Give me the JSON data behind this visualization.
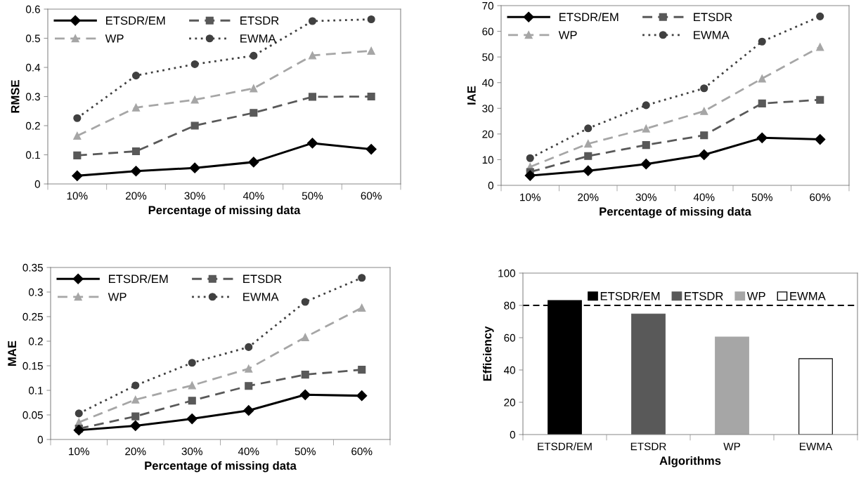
{
  "chart_data": [
    {
      "type": "line",
      "xlabel": "Percentage of missing data",
      "ylabel": "RMSE",
      "categories": [
        "10%",
        "20%",
        "30%",
        "40%",
        "50%",
        "60%"
      ],
      "ylim": [
        0,
        0.6
      ],
      "yticks": [
        0,
        0.1,
        0.2,
        0.3,
        0.4,
        0.5,
        0.6
      ],
      "grid": false,
      "legend": "top left",
      "series": [
        {
          "name": "ETSDR/EM",
          "color": "#000000",
          "marker": "diamond",
          "line_style": "solid",
          "values": [
            0.028,
            0.044,
            0.055,
            0.075,
            0.14,
            0.119
          ]
        },
        {
          "name": "ETSDR",
          "color": "#595959",
          "marker": "square",
          "line_style": "dashed",
          "values": [
            0.098,
            0.112,
            0.2,
            0.244,
            0.299,
            0.3
          ]
        },
        {
          "name": "WP",
          "color": "#a6a6a6",
          "marker": "triangle",
          "line_style": "dashed",
          "values": [
            0.165,
            0.262,
            0.289,
            0.328,
            0.441,
            0.457
          ]
        },
        {
          "name": "EWMA",
          "color": "#404040",
          "marker": "circle",
          "line_style": "dotted",
          "values": [
            0.226,
            0.372,
            0.411,
            0.44,
            0.559,
            0.565
          ]
        }
      ]
    },
    {
      "type": "line",
      "xlabel": "Percentage of missing data",
      "ylabel": "IAE",
      "categories": [
        "10%",
        "20%",
        "30%",
        "40%",
        "50%",
        "60%"
      ],
      "ylim": [
        0,
        70
      ],
      "yticks": [
        0,
        10,
        20,
        30,
        40,
        50,
        60,
        70
      ],
      "grid": false,
      "legend": "top left",
      "series": [
        {
          "name": "ETSDR/EM",
          "color": "#000000",
          "marker": "diamond",
          "line_style": "solid",
          "values": [
            3.8,
            5.7,
            8.3,
            11.9,
            18.5,
            17.9
          ]
        },
        {
          "name": "ETSDR",
          "color": "#595959",
          "marker": "square",
          "line_style": "dashed",
          "values": [
            5.2,
            11.4,
            15.7,
            19.5,
            31.9,
            33.3
          ]
        },
        {
          "name": "WP",
          "color": "#a6a6a6",
          "marker": "triangle",
          "line_style": "dashed",
          "values": [
            7.2,
            16.2,
            22.1,
            28.9,
            41.6,
            53.9
          ]
        },
        {
          "name": "EWMA",
          "color": "#404040",
          "marker": "circle",
          "line_style": "dotted",
          "values": [
            10.6,
            22.2,
            31.2,
            37.8,
            56,
            65.8
          ]
        }
      ]
    },
    {
      "type": "line",
      "xlabel": "Percentage of missing data",
      "ylabel": "MAE",
      "categories": [
        "10%",
        "20%",
        "30%",
        "40%",
        "50%",
        "60%"
      ],
      "ylim": [
        0,
        0.35
      ],
      "yticks": [
        0,
        0.05,
        0.1,
        0.15,
        0.2,
        0.25,
        0.3,
        0.35
      ],
      "grid": false,
      "legend": "top left",
      "series": [
        {
          "name": "ETSDR/EM",
          "color": "#000000",
          "marker": "diamond",
          "line_style": "solid",
          "values": [
            0.019,
            0.028,
            0.042,
            0.059,
            0.091,
            0.089
          ]
        },
        {
          "name": "ETSDR",
          "color": "#595959",
          "marker": "square",
          "line_style": "dashed",
          "values": [
            0.022,
            0.047,
            0.079,
            0.109,
            0.132,
            0.142
          ]
        },
        {
          "name": "WP",
          "color": "#a6a6a6",
          "marker": "triangle",
          "line_style": "dashed",
          "values": [
            0.035,
            0.081,
            0.11,
            0.144,
            0.208,
            0.268
          ]
        },
        {
          "name": "EWMA",
          "color": "#404040",
          "marker": "circle",
          "line_style": "dotted",
          "values": [
            0.053,
            0.11,
            0.156,
            0.188,
            0.28,
            0.329
          ]
        }
      ]
    },
    {
      "type": "bar",
      "xlabel": "Algorithms",
      "ylabel": "Efficiency",
      "categories": [
        "ETSDR/EM",
        "ETSDR",
        "WP",
        "EWMA"
      ],
      "ylim": [
        0,
        100
      ],
      "yticks": [
        0,
        20,
        40,
        60,
        80,
        100
      ],
      "grid": false,
      "legend": "top",
      "ref_lines": [
        {
          "axis": "y",
          "value": 80,
          "color": "#000000",
          "line_style": "dashed"
        }
      ],
      "series": [
        {
          "name": "ETSDR/EM",
          "color": "#000000",
          "values": [
            83,
            null,
            null,
            null
          ]
        },
        {
          "name": "ETSDR",
          "color": "#595959",
          "values": [
            null,
            74.7,
            null,
            null
          ]
        },
        {
          "name": "WP",
          "color": "#a6a6a6",
          "values": [
            null,
            null,
            60.4,
            null
          ]
        },
        {
          "name": "EWMA",
          "color": "#ffffff",
          "values": [
            null,
            null,
            null,
            47
          ]
        }
      ]
    }
  ]
}
